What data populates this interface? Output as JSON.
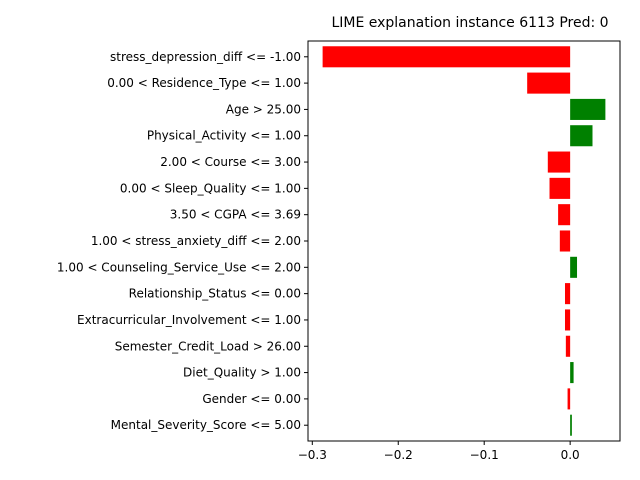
{
  "chart_data": {
    "type": "bar",
    "orientation": "horizontal",
    "title": "LIME explanation instance 6113 Pred: 0",
    "xlabel": "",
    "ylabel": "",
    "xlim": [
      -0.305,
      0.058
    ],
    "xticks": [
      -0.3,
      -0.2,
      -0.1,
      0.0
    ],
    "xtick_labels": [
      "−0.3",
      "−0.2",
      "−0.1",
      "0.0"
    ],
    "grid": false,
    "positive_color": "#008000",
    "negative_color": "#ff0000",
    "categories": [
      "stress_depression_diff <= -1.00",
      "0.00 < Residence_Type <= 1.00",
      "Age > 25.00",
      "Physical_Activity <= 1.00",
      "2.00 < Course <= 3.00",
      "0.00 < Sleep_Quality <= 1.00",
      "3.50 < CGPA <= 3.69",
      "1.00 < stress_anxiety_diff <= 2.00",
      "1.00 < Counseling_Service_Use <= 2.00",
      "Relationship_Status <= 0.00",
      "Extracurricular_Involvement <= 1.00",
      "Semester_Credit_Load > 26.00",
      "Diet_Quality > 1.00",
      "Gender <= 0.00",
      "Mental_Severity_Score <= 5.00"
    ],
    "values": [
      -0.288,
      -0.05,
      0.041,
      0.026,
      -0.026,
      -0.024,
      -0.014,
      -0.012,
      0.008,
      -0.006,
      -0.006,
      -0.005,
      0.004,
      -0.003,
      0.002
    ]
  }
}
